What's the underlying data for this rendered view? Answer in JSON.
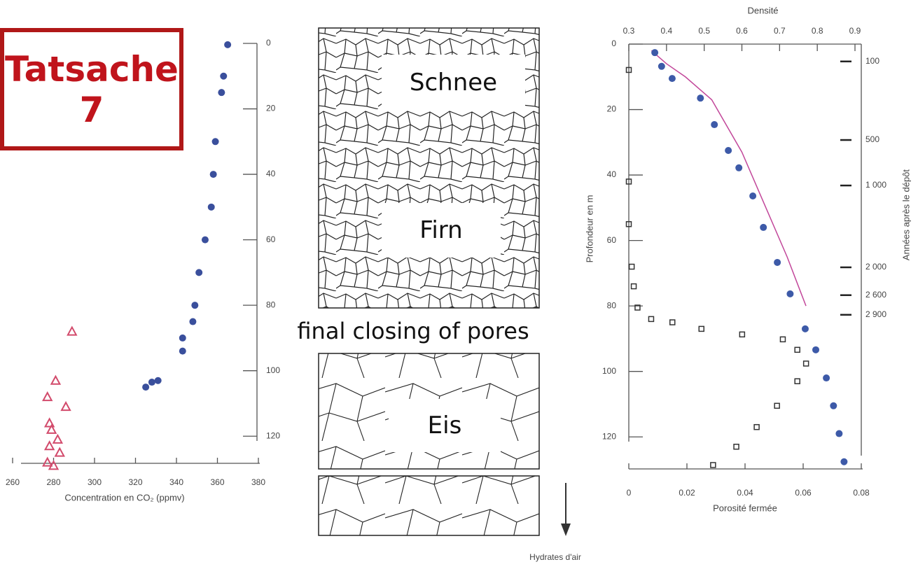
{
  "slide": {
    "badge_lines": [
      "Tatsache",
      "7"
    ],
    "layers": [
      "Schnee",
      "Firn",
      "final closing of pores",
      "Eis"
    ],
    "footer": "Hydrates d'air"
  },
  "chart_data": [
    {
      "type": "scatter",
      "xlabel": "Concentration en CO₂ (ppmv)",
      "xlim": [
        260,
        380
      ],
      "xticks": [
        260,
        280,
        300,
        320,
        340,
        360,
        380
      ],
      "ylim": [
        0,
        130
      ],
      "yticks": [
        0,
        20,
        40,
        60,
        80,
        100,
        120
      ],
      "y_inverted": true,
      "series": [
        {
          "color": "#3a4f9c",
          "marker": "circle",
          "x": [
            365,
            363,
            362,
            359,
            358,
            357,
            354,
            351,
            349,
            348,
            343,
            343,
            331,
            328,
            325
          ],
          "values": [
            0.4,
            10,
            15,
            30,
            40,
            50,
            60,
            70,
            80,
            85,
            90,
            94,
            103,
            103.5,
            105
          ]
        },
        {
          "color": "#d24a6b",
          "marker": "triangle",
          "x": [
            289,
            281,
            277,
            286,
            278,
            279,
            282,
            278,
            283,
            277,
            280
          ],
          "values": [
            88,
            103,
            108,
            111,
            116,
            118,
            121,
            123,
            125,
            128,
            129
          ]
        }
      ]
    },
    {
      "type": "scatter",
      "xlabel": "Porosité fermée",
      "x2label": "Densité",
      "ylabel": "Profondeur en m",
      "xlim": [
        0,
        0.08
      ],
      "xticks": [
        0,
        0.02,
        0.04,
        0.06,
        0.08
      ],
      "x2lim": [
        0.3,
        0.9
      ],
      "x2ticks": [
        0.3,
        0.4,
        0.5,
        0.6,
        0.7,
        0.8,
        0.9
      ],
      "ylim": [
        0,
        130
      ],
      "yticks": [
        0,
        20,
        40,
        60,
        80,
        100,
        120
      ],
      "y_inverted": true,
      "age_axis": {
        "label": "Années après le dépôt",
        "ticks": [
          {
            "depth": 5.3,
            "label": "100"
          },
          {
            "depth": 29.3,
            "label": "500"
          },
          {
            "depth": 43.2,
            "label": "1 000"
          },
          {
            "depth": 68.2,
            "label": "2 000"
          },
          {
            "depth": 76.7,
            "label": "2 600"
          },
          {
            "depth": 82.7,
            "label": "2 900"
          }
        ]
      },
      "series": [
        {
          "color": "#c2479a",
          "marker": "line",
          "xaxis": "x2",
          "x": [
            0.36,
            0.4,
            0.45,
            0.52,
            0.6,
            0.66,
            0.72,
            0.77
          ],
          "values": [
            2,
            6,
            10,
            17,
            33,
            49,
            65,
            80
          ]
        },
        {
          "color": "#3d5aa8",
          "marker": "circle",
          "xaxis": "x2",
          "x": [
            0.369,
            0.387,
            0.415,
            0.49,
            0.527,
            0.564,
            0.592,
            0.629,
            0.657,
            0.694,
            0.728,
            0.768,
            0.796,
            0.824,
            0.843,
            0.858,
            0.871
          ],
          "values": [
            2.6,
            6.8,
            10.5,
            16.5,
            24.6,
            32.5,
            37.8,
            46.4,
            56,
            66.7,
            76.3,
            87,
            93.4,
            102,
            110.5,
            119,
            127.6
          ]
        },
        {
          "color": "#333333",
          "marker": "square",
          "x": [
            0,
            0,
            0,
            0.001,
            0.0017,
            0.003,
            0.0077,
            0.015,
            0.025,
            0.039,
            0.053,
            0.058,
            0.061,
            0.058,
            0.051,
            0.044,
            0.037,
            0.029
          ],
          "values": [
            7.9,
            42,
            55,
            68,
            74,
            80.5,
            84,
            85,
            87,
            88.7,
            90.2,
            93.4,
            97.6,
            103,
            110.5,
            117,
            123,
            128.6
          ]
        }
      ]
    }
  ]
}
